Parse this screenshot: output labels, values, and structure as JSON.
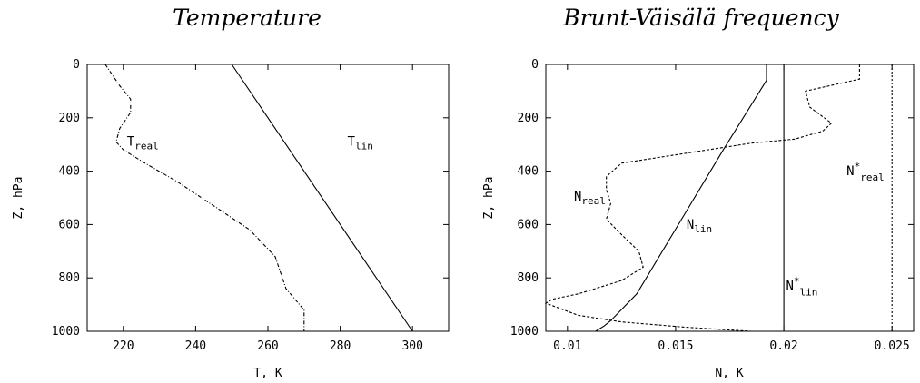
{
  "chart_data": [
    {
      "type": "line",
      "title": "Temperature",
      "xlabel": "T, K",
      "ylabel": "Z, hPa",
      "xlim": [
        210,
        310
      ],
      "ylim": [
        1000,
        0
      ],
      "xticks": [
        220,
        240,
        260,
        280,
        300
      ],
      "yticks": [
        0,
        200,
        400,
        600,
        800,
        1000
      ],
      "series": [
        {
          "name": "T_real",
          "label_main": "T",
          "label_sub": "real",
          "style": "dashdot",
          "x": [
            215,
            217,
            219,
            222,
            222,
            219,
            218,
            220,
            226,
            235,
            245,
            255,
            262,
            265,
            270,
            270
          ],
          "y": [
            0,
            40,
            80,
            130,
            180,
            240,
            290,
            320,
            370,
            440,
            530,
            620,
            720,
            840,
            920,
            1000
          ]
        },
        {
          "name": "T_lin",
          "label_main": "T",
          "label_sub": "lin",
          "style": "solid",
          "x": [
            250,
            300
          ],
          "y": [
            0,
            1000
          ]
        }
      ],
      "annotations": [
        {
          "main": "T",
          "sub": "real",
          "x": 221,
          "y": 305
        },
        {
          "main": "T",
          "sub": "lin",
          "x": 282,
          "y": 305
        }
      ]
    },
    {
      "type": "line",
      "title": "Brunt-Väisälä frequency",
      "xlabel": "N, K",
      "ylabel": "Z, hPa",
      "xlim": [
        0.009,
        0.026
      ],
      "ylim": [
        1000,
        0
      ],
      "xticks": [
        0.01,
        0.015,
        0.02,
        0.025
      ],
      "xtick_labels": [
        "0.01",
        "0.015",
        "0.02",
        "0.025"
      ],
      "yticks": [
        0,
        200,
        400,
        600,
        800,
        1000
      ],
      "series": [
        {
          "name": "N_real",
          "label_main": "N",
          "label_sub": "real",
          "style": "dashed",
          "x": [
            0.0235,
            0.0235,
            0.021,
            0.0212,
            0.0222,
            0.0218,
            0.0205,
            0.0185,
            0.0125,
            0.0118,
            0.0118,
            0.012,
            0.0118,
            0.0124,
            0.0133,
            0.0135,
            0.0125,
            0.0105,
            0.0093,
            0.009,
            0.0095,
            0.0105,
            0.0125,
            0.0155,
            0.0185
          ],
          "y": [
            0,
            55,
            100,
            160,
            220,
            250,
            280,
            295,
            370,
            420,
            470,
            520,
            580,
            630,
            700,
            760,
            810,
            860,
            880,
            895,
            910,
            940,
            965,
            985,
            1000
          ]
        },
        {
          "name": "N_lin",
          "label_main": "N",
          "label_sub": "lin",
          "style": "solid",
          "x": [
            0.0192,
            0.0192,
            0.0172,
            0.0152,
            0.0132,
            0.012,
            0.0117,
            0.0114,
            0.0113
          ],
          "y": [
            0,
            60,
            320,
            590,
            860,
            960,
            980,
            995,
            1000
          ]
        },
        {
          "name": "N*_lin",
          "label_main": "N",
          "label_sub": "lin",
          "style": "solid",
          "x": [
            0.02,
            0.02
          ],
          "y": [
            0,
            1000
          ]
        },
        {
          "name": "N*_real",
          "label_main": "N",
          "label_sub": "real",
          "style": "dotted",
          "x": [
            0.025,
            0.025
          ],
          "y": [
            0,
            1000
          ]
        }
      ],
      "annotations": [
        {
          "main": "N",
          "sub": "real",
          "x": 0.0103,
          "y": 510,
          "star": false
        },
        {
          "main": "N",
          "sub": "lin",
          "x": 0.0155,
          "y": 615,
          "star": false
        },
        {
          "main": "N",
          "sub": "lin",
          "x": 0.0201,
          "y": 845,
          "star": true
        },
        {
          "main": "N",
          "sub": "real",
          "x": 0.0229,
          "y": 415,
          "star": true
        }
      ]
    }
  ]
}
